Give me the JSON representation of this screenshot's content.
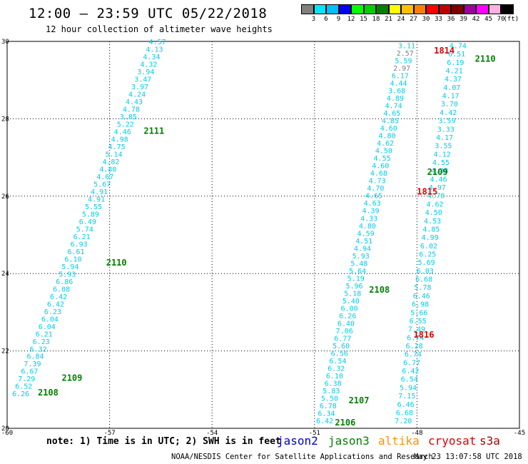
{
  "title": "12:00 – 23:59 UTC 05/22/2018",
  "subtitle": "12 hour collection of altimeter wave heights",
  "scale": {
    "colors": [
      "#808080",
      "#00e5ff",
      "#00bfff",
      "#0000ff",
      "#00ff00",
      "#00d000",
      "#008000",
      "#ffff00",
      "#ffc000",
      "#ff8000",
      "#ff0000",
      "#c00000",
      "#800000",
      "#a000a0",
      "#ff00ff",
      "#ffb0e0",
      "#000000"
    ],
    "labels": [
      "3",
      "6",
      "9",
      "12",
      "15",
      "18",
      "21",
      "24",
      "27",
      "30",
      "33",
      "36",
      "39",
      "42",
      "45",
      "70",
      "(ft)"
    ]
  },
  "note": "note: 1) Time is in UTC; 2) SWH is in feet",
  "missions": [
    {
      "name": "jason2",
      "color": "#0000cc"
    },
    {
      "name": "jason3",
      "color": "#008000"
    },
    {
      "name": "altika",
      "color": "#ff9000"
    },
    {
      "name": "cryosat",
      "color": "#dd0000"
    },
    {
      "name": "s3a",
      "color": "#aa0000"
    }
  ],
  "footer_left": "NOAA/NESDIS Center for Satellite Applications and Research",
  "footer_right": "May 23 13:07:58 UTC 2018",
  "chart_data": {
    "type": "scatter",
    "xlim": [
      -60,
      -45
    ],
    "ylim": [
      20,
      30
    ],
    "x_ticks": [
      "-60",
      "-57",
      "-54",
      "-51",
      "-48",
      "-45"
    ],
    "y_ticks": [
      "20",
      "22",
      "24",
      "26",
      "28",
      "30"
    ],
    "grid": true,
    "tracks": [
      {
        "from": [
          -59.6,
          20.9
        ],
        "to": [
          -55.6,
          30.0
        ],
        "values": [
          "6.26",
          "6.52",
          "7.29",
          "6.67",
          "7.39",
          "6.84",
          "6.32",
          "6.23",
          "6.21",
          "6.04",
          "6.04",
          "6.23",
          "6.42",
          "6.42",
          "6.08",
          "6.86",
          "5.93",
          "5.94",
          "6.10",
          "6.61",
          "6.93",
          "6.21",
          "5.74",
          "6.49",
          "5.89",
          "5.55",
          "4.91",
          "4.91",
          "5.67",
          "4.67",
          "4.80",
          "4.82",
          "5.14",
          "4.75",
          "4.98",
          "4.46",
          "5.22",
          "3.85",
          "4.78",
          "4.43",
          "4.24",
          "3.97",
          "3.47",
          "3.94",
          "4.32",
          "4.34",
          "4.13",
          "4.57"
        ]
      },
      {
        "from": [
          -50.7,
          20.2
        ],
        "to": [
          -48.3,
          29.9
        ],
        "values": [
          "6.42",
          "6.34",
          "6.78",
          "5.50",
          "5.83",
          "6.38",
          "6.10",
          "6.32",
          "6.54",
          "6.56",
          "5.60",
          "6.77",
          "7.06",
          "6.40",
          "6.26",
          "6.00",
          "5.40",
          "5.18",
          "5.96",
          "5.19",
          "5.64",
          "5.48",
          "5.93",
          "4.94",
          "4.51",
          "4.59",
          "4.80",
          "4.33",
          "4.39",
          "4.63",
          "4.65",
          "4.70",
          "4.73",
          "4.68",
          "4.60",
          "4.55",
          "4.50",
          "4.62",
          "4.80",
          "4.60",
          "4.85",
          "4.65",
          "4.74",
          "4.89",
          "3.68",
          "4.44",
          "6.17",
          "2.97",
          "5.59",
          "2.57",
          "3.11"
        ]
      },
      {
        "from": [
          -48.4,
          20.2
        ],
        "to": [
          -46.8,
          29.9
        ],
        "values": [
          "7.20",
          "6.68",
          "6.46",
          "7.15",
          "5.94",
          "6.54",
          "6.42",
          "6.77",
          "6.74",
          "6.28",
          "6.74",
          "7.49",
          "6.55",
          "5.66",
          "6.98",
          "6.46",
          "5.78",
          "6.68",
          "6.03",
          "5.69",
          "6.25",
          "6.02",
          "4.99",
          "4.85",
          "4.53",
          "4.50",
          "4.62",
          "4.70",
          "4.97",
          "4.46",
          "4.38",
          "4.55",
          "4.12",
          "3.55",
          "4.17",
          "3.33",
          "3.59",
          "4.42",
          "3.70",
          "4.17",
          "4.07",
          "4.37",
          "4.21",
          "6.19",
          "6.51",
          "4.74"
        ]
      }
    ],
    "annotations": [
      {
        "text": "2108",
        "x": -58.8,
        "y": 20.92,
        "color": "#008000"
      },
      {
        "text": "2109",
        "x": -58.1,
        "y": 21.3,
        "color": "#008000"
      },
      {
        "text": "2110",
        "x": -56.8,
        "y": 24.28,
        "color": "#008000"
      },
      {
        "text": "2111",
        "x": -55.7,
        "y": 27.68,
        "color": "#008000"
      },
      {
        "text": "2106",
        "x": -50.1,
        "y": 20.15,
        "color": "#008000"
      },
      {
        "text": "2107",
        "x": -49.7,
        "y": 20.72,
        "color": "#008000"
      },
      {
        "text": "2108",
        "x": -49.1,
        "y": 23.58,
        "color": "#008000"
      },
      {
        "text": "2109",
        "x": -47.4,
        "y": 26.62,
        "color": "#008000"
      },
      {
        "text": "2110",
        "x": -46.0,
        "y": 29.55,
        "color": "#008000"
      },
      {
        "text": "1816",
        "x": -47.8,
        "y": 22.42,
        "color": "#dd0000"
      },
      {
        "text": "1815",
        "x": -47.7,
        "y": 26.12,
        "color": "#dd0000"
      },
      {
        "text": "1814",
        "x": -47.2,
        "y": 29.76,
        "color": "#dd0000"
      }
    ]
  }
}
